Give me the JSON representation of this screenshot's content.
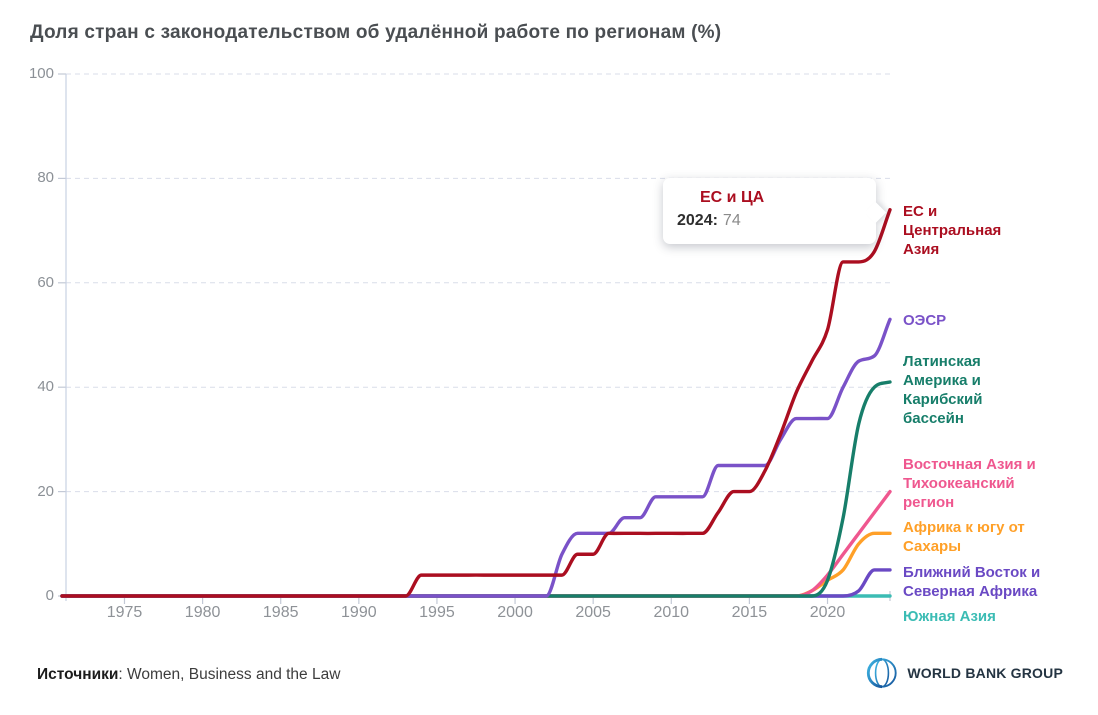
{
  "title": "Доля стран с законодательством об удалённой работе по регионам (%)",
  "tooltip": {
    "series": "ЕС и ЦА",
    "year_label": "2024:",
    "value": "74"
  },
  "footer": {
    "sources_label": "Источники",
    "sources_text": ": Women, Business and the Law",
    "logo_text": "WORLD BANK GROUP"
  },
  "icons": {
    "logo_globe": "world-bank-globe-icon"
  },
  "colors": {
    "grid": "#d9dde9",
    "axis": "#c9d1e2",
    "title_text": "#4a4e52",
    "tick_text": "#8e9297"
  },
  "chart_data": {
    "type": "line",
    "title": "Доля стран с законодательством об удалённой работе по регионам (%)",
    "xlabel": "",
    "ylabel": "",
    "xlim": [
      1971,
      2024
    ],
    "ylim": [
      0,
      100
    ],
    "grid": "horizontal-dashed",
    "legend_position": "right-edge-labels",
    "xticks": [
      1975,
      1980,
      1985,
      1990,
      1995,
      2000,
      2005,
      2010,
      2015,
      2020
    ],
    "yticks": [
      0,
      20,
      40,
      60,
      80,
      100
    ],
    "x_years": [
      1971,
      1972,
      1973,
      1974,
      1975,
      1976,
      1977,
      1978,
      1979,
      1980,
      1981,
      1982,
      1983,
      1984,
      1985,
      1986,
      1987,
      1988,
      1989,
      1990,
      1991,
      1992,
      1993,
      1994,
      1995,
      1996,
      1997,
      1998,
      1999,
      2000,
      2001,
      2002,
      2003,
      2004,
      2005,
      2006,
      2007,
      2008,
      2009,
      2010,
      2011,
      2012,
      2013,
      2014,
      2015,
      2016,
      2017,
      2018,
      2019,
      2020,
      2021,
      2022,
      2023,
      2024
    ],
    "series": [
      {
        "name": "ЕС и Центральная Азия",
        "label": "ЕС и\nЦентральная\nАзия",
        "color": "#ab0e20",
        "end_value_2024": 74,
        "values": [
          0,
          0,
          0,
          0,
          0,
          0,
          0,
          0,
          0,
          0,
          0,
          0,
          0,
          0,
          0,
          0,
          0,
          0,
          0,
          0,
          0,
          0,
          0,
          4,
          4,
          4,
          4,
          4,
          4,
          4,
          4,
          4,
          4,
          8,
          8,
          12,
          12,
          12,
          12,
          12,
          12,
          12,
          16,
          20,
          20,
          24,
          31,
          39,
          45,
          51,
          64,
          64,
          66,
          74
        ]
      },
      {
        "name": "ОЭСР",
        "label": "ОЭСР",
        "color": "#7a52c8",
        "end_value_2024": 53,
        "values": [
          0,
          0,
          0,
          0,
          0,
          0,
          0,
          0,
          0,
          0,
          0,
          0,
          0,
          0,
          0,
          0,
          0,
          0,
          0,
          0,
          0,
          0,
          0,
          0,
          0,
          0,
          0,
          0,
          0,
          0,
          0,
          0,
          8,
          12,
          12,
          12,
          15,
          15,
          19,
          19,
          19,
          19,
          25,
          25,
          25,
          25,
          30,
          34,
          34,
          34,
          40,
          45,
          46,
          53
        ]
      },
      {
        "name": "Латинская Америка и Карибский бассейн",
        "label": "Латинская\nАмерика и\nКарибский\nбассейн",
        "color": "#177e6a",
        "end_value_2024": 41,
        "values": [
          0,
          0,
          0,
          0,
          0,
          0,
          0,
          0,
          0,
          0,
          0,
          0,
          0,
          0,
          0,
          0,
          0,
          0,
          0,
          0,
          0,
          0,
          0,
          0,
          0,
          0,
          0,
          0,
          0,
          0,
          0,
          0,
          0,
          0,
          0,
          0,
          0,
          0,
          0,
          0,
          0,
          0,
          0,
          0,
          0,
          0,
          0,
          0,
          0,
          3,
          15,
          33,
          40,
          41
        ]
      },
      {
        "name": "Восточная Азия и Тихоокеанский регион",
        "label": "Восточная Азия и\nТихоокеанский\nрегион",
        "color": "#ef578f",
        "end_value_2024": 20,
        "values": [
          0,
          0,
          0,
          0,
          0,
          0,
          0,
          0,
          0,
          0,
          0,
          0,
          0,
          0,
          0,
          0,
          0,
          0,
          0,
          0,
          0,
          0,
          0,
          0,
          0,
          0,
          0,
          0,
          0,
          0,
          0,
          0,
          0,
          0,
          0,
          0,
          0,
          0,
          0,
          0,
          0,
          0,
          0,
          0,
          0,
          0,
          0,
          0,
          1,
          4,
          8,
          12,
          16,
          20
        ]
      },
      {
        "name": "Африка к югу от Сахары",
        "label": "Африка к югу от\nСахары",
        "color": "#ffa028",
        "end_value_2024": 12,
        "values": [
          0,
          0,
          0,
          0,
          0,
          0,
          0,
          0,
          0,
          0,
          0,
          0,
          0,
          0,
          0,
          0,
          0,
          0,
          0,
          0,
          0,
          0,
          0,
          0,
          0,
          0,
          0,
          0,
          0,
          0,
          0,
          0,
          0,
          0,
          0,
          0,
          0,
          0,
          0,
          0,
          0,
          0,
          0,
          0,
          0,
          0,
          0,
          0,
          1,
          3,
          5,
          10,
          12,
          12
        ]
      },
      {
        "name": "Ближний Восток и Северная Африка",
        "label": "Ближний Восток и\nСеверная Африка",
        "color": "#6a49c4",
        "end_value_2024": 5,
        "values": [
          0,
          0,
          0,
          0,
          0,
          0,
          0,
          0,
          0,
          0,
          0,
          0,
          0,
          0,
          0,
          0,
          0,
          0,
          0,
          0,
          0,
          0,
          0,
          0,
          0,
          0,
          0,
          0,
          0,
          0,
          0,
          0,
          0,
          0,
          0,
          0,
          0,
          0,
          0,
          0,
          0,
          0,
          0,
          0,
          0,
          0,
          0,
          0,
          0,
          0,
          0,
          1,
          5,
          5
        ]
      },
      {
        "name": "Южная Азия",
        "label": "Южная Азия",
        "color": "#3bbcb4",
        "end_value_2024": 0,
        "values": [
          0,
          0,
          0,
          0,
          0,
          0,
          0,
          0,
          0,
          0,
          0,
          0,
          0,
          0,
          0,
          0,
          0,
          0,
          0,
          0,
          0,
          0,
          0,
          0,
          0,
          0,
          0,
          0,
          0,
          0,
          0,
          0,
          0,
          0,
          0,
          0,
          0,
          0,
          0,
          0,
          0,
          0,
          0,
          0,
          0,
          0,
          0,
          0,
          0,
          0,
          0,
          0,
          0,
          0
        ]
      }
    ]
  }
}
